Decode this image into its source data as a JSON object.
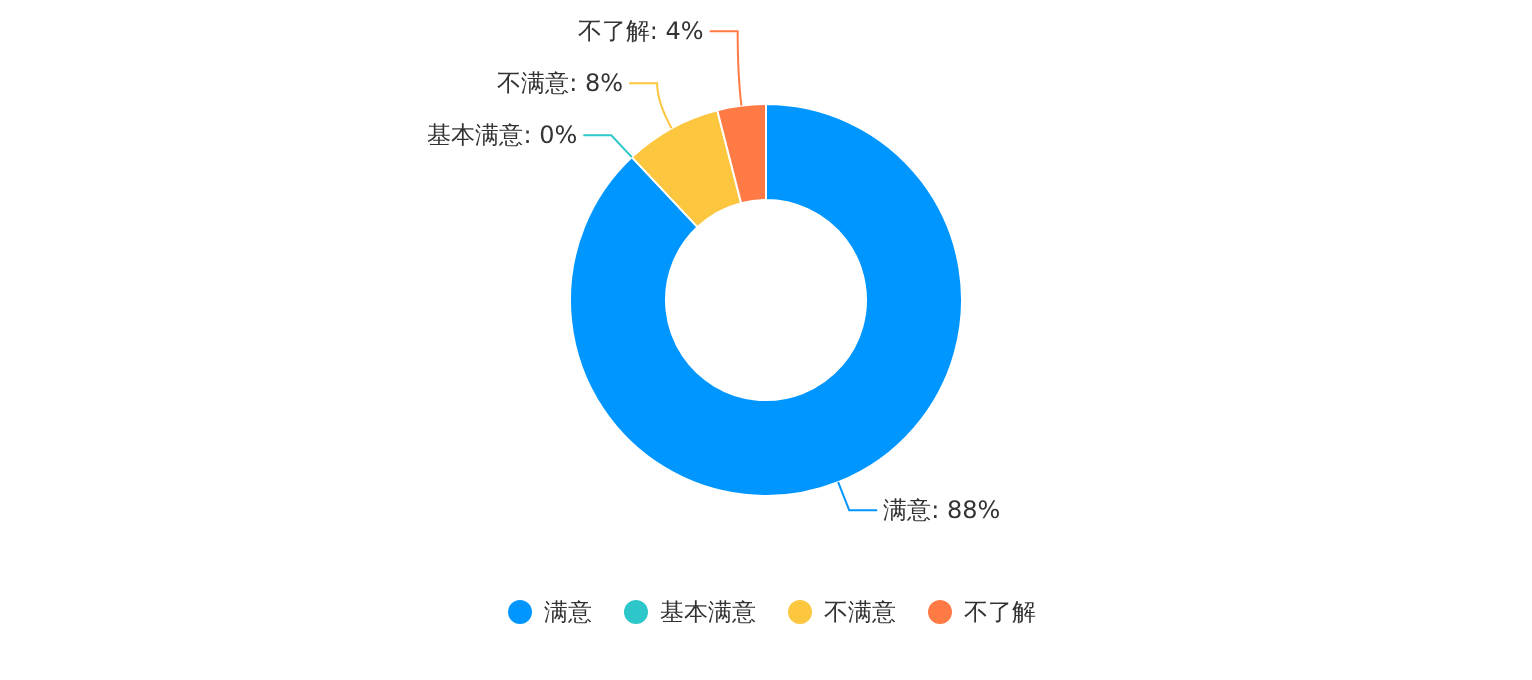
{
  "chart_data": {
    "type": "donut",
    "categories": [
      "满意",
      "基本满意",
      "不满意",
      "不了解"
    ],
    "values": [
      88,
      0,
      8,
      4
    ],
    "colors": [
      "#0096ff",
      "#2ec7c9",
      "#fcc63e",
      "#ff7a45"
    ],
    "value_labels": [
      "满意: 88%",
      "基本满意: 0%",
      "不满意: 8%",
      "不了解: 4%"
    ],
    "legend": "bottom"
  }
}
